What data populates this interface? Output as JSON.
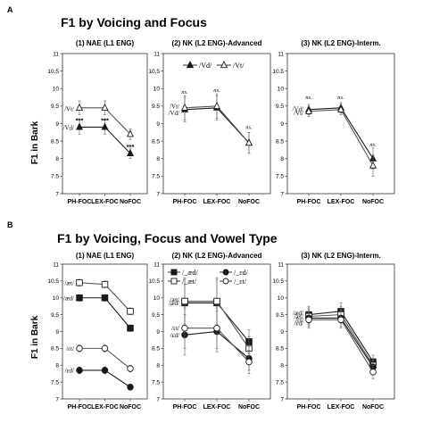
{
  "figure": {
    "panels": [
      {
        "letter": "A",
        "title": "F1 by Voicing and Focus",
        "ylabel": "F1 in Bark"
      },
      {
        "letter": "B",
        "title": "F1 by Voicing, Focus and Vowel Type",
        "ylabel": "F1 in Bark"
      }
    ]
  },
  "chart_data": [
    {
      "id": "A1",
      "type": "line",
      "title": "(1) NAE (L1 ENG)",
      "categories": [
        "PH-FOC",
        "LEX-FOC",
        "NoFOC"
      ],
      "ylim": [
        7,
        11
      ],
      "yticks": [
        7,
        7.5,
        8,
        8.5,
        9,
        9.5,
        10,
        10.5,
        11
      ],
      "series": [
        {
          "name": "/Vd/",
          "marker": "triangle",
          "fill": "filled",
          "values": [
            8.9,
            8.9,
            8.15
          ],
          "err": [
            0.2,
            0.2,
            0.15
          ]
        },
        {
          "name": "/Vt/",
          "marker": "triangle",
          "fill": "open",
          "values": [
            9.45,
            9.45,
            8.7
          ],
          "err": [
            0.2,
            0.2,
            0.15
          ]
        }
      ],
      "annotations": [
        {
          "text": "/Vt/",
          "style": "label",
          "cat": 0,
          "y": 9.42,
          "side": "left"
        },
        {
          "text": "/Vd/",
          "style": "label",
          "cat": 0,
          "y": 8.88,
          "side": "left"
        },
        {
          "text": "***",
          "style": "stars",
          "cat": 0,
          "y": 9.1
        },
        {
          "text": "***",
          "style": "stars",
          "cat": 1,
          "y": 9.1
        },
        {
          "text": "***",
          "style": "stars",
          "cat": 2,
          "y": 8.35
        }
      ]
    },
    {
      "id": "A2",
      "type": "line",
      "title": "(2) NK (L2 ENG)-Advanced",
      "categories": [
        "PH-FOC",
        "LEX-FOC",
        "NoFOC"
      ],
      "ylim": [
        7,
        11
      ],
      "yticks": [
        7,
        7.5,
        8,
        8.5,
        9,
        9.5,
        10,
        10.5,
        11
      ],
      "legend": {
        "placement": "top",
        "items": [
          {
            "marker": "triangle",
            "fill": "filled",
            "text": "/Vd/"
          },
          {
            "marker": "triangle",
            "fill": "open",
            "text": "/Vt/"
          }
        ]
      },
      "series": [
        {
          "name": "/Vd/",
          "marker": "triangle",
          "fill": "filled",
          "values": [
            9.4,
            9.45,
            8.45
          ],
          "err": [
            0.35,
            0.35,
            0.3
          ]
        },
        {
          "name": "/Vt/",
          "marker": "triangle",
          "fill": "open",
          "values": [
            9.45,
            9.5,
            8.45
          ],
          "err": [
            0.35,
            0.35,
            0.3
          ]
        }
      ],
      "annotations": [
        {
          "text": "/Vt/",
          "style": "label",
          "cat": 0,
          "y": 9.5,
          "side": "left"
        },
        {
          "text": "/Vd/",
          "style": "label",
          "cat": 0,
          "y": 9.3,
          "side": "left"
        },
        {
          "text": "ns.",
          "style": "ns",
          "cat": 0,
          "y": 9.85
        },
        {
          "text": "ns.",
          "style": "ns",
          "cat": 1,
          "y": 9.9
        },
        {
          "text": "ns.",
          "style": "ns",
          "cat": 2,
          "y": 8.85
        }
      ]
    },
    {
      "id": "A3",
      "type": "line",
      "title": "(3) NK (L2 ENG)-Interm.",
      "categories": [
        "PH-FOC",
        "LEX-FOC",
        "NoFOC"
      ],
      "ylim": [
        7,
        11
      ],
      "yticks": [
        7,
        7.5,
        8,
        8.5,
        9,
        9.5,
        10,
        10.5,
        11
      ],
      "series": [
        {
          "name": "/Vd/",
          "marker": "triangle",
          "fill": "filled",
          "values": [
            9.4,
            9.45,
            8.0
          ],
          "err": [
            0.15,
            0.15,
            0.3
          ]
        },
        {
          "name": "/Vt/",
          "marker": "triangle",
          "fill": "open",
          "values": [
            9.35,
            9.4,
            7.8
          ],
          "err": [
            0.15,
            0.15,
            0.3
          ]
        }
      ],
      "annotations": [
        {
          "text": "/Vd/",
          "style": "label",
          "cat": 0,
          "y": 9.42,
          "side": "left"
        },
        {
          "text": "/Vt/",
          "style": "label",
          "cat": 0,
          "y": 9.3,
          "side": "left"
        },
        {
          "text": "ns.",
          "style": "ns",
          "cat": 0,
          "y": 9.7
        },
        {
          "text": "ns.",
          "style": "ns",
          "cat": 1,
          "y": 9.7
        },
        {
          "text": "ns.",
          "style": "ns",
          "cat": 2,
          "y": 8.35
        }
      ]
    },
    {
      "id": "B1",
      "type": "line",
      "title": "(1) NAE (L1 ENG)",
      "categories": [
        "PH-FOC",
        "LEX-FOC",
        "NoFOC"
      ],
      "ylim": [
        7,
        11
      ],
      "yticks": [
        7,
        7.5,
        8,
        8.5,
        9,
        9.5,
        10,
        10.5,
        11
      ],
      "series": [
        {
          "name": "/æd/",
          "marker": "square",
          "fill": "filled",
          "values": [
            10.0,
            10.0,
            9.1
          ],
          "err": [
            0.1,
            0.1,
            0.1
          ]
        },
        {
          "name": "/æt/",
          "marker": "square",
          "fill": "open",
          "values": [
            10.45,
            10.4,
            9.6
          ],
          "err": [
            0.1,
            0.1,
            0.1
          ]
        },
        {
          "name": "/ɛd/",
          "marker": "circle",
          "fill": "filled",
          "values": [
            7.85,
            7.85,
            7.35
          ],
          "err": [
            0.1,
            0.1,
            0.08
          ]
        },
        {
          "name": "/ɛt/",
          "marker": "circle",
          "fill": "open",
          "values": [
            8.5,
            8.5,
            7.9
          ],
          "err": [
            0.1,
            0.1,
            0.1
          ]
        }
      ],
      "annotations": [
        {
          "text": "/æt/",
          "style": "label",
          "cat": 0,
          "y": 10.45,
          "side": "left"
        },
        {
          "text": "/æd/",
          "style": "label",
          "cat": 0,
          "y": 10.0,
          "side": "left"
        },
        {
          "text": "/ɛt/",
          "style": "label",
          "cat": 0,
          "y": 8.5,
          "side": "left"
        },
        {
          "text": "/ɛd/",
          "style": "label",
          "cat": 0,
          "y": 7.85,
          "side": "left"
        }
      ]
    },
    {
      "id": "B2",
      "type": "line",
      "title": "(2) NK (L2 ENG)-Advanced",
      "categories": [
        "PH-FOC",
        "LEX-FOC",
        "NoFOC"
      ],
      "ylim": [
        7,
        11
      ],
      "yticks": [
        7,
        7.5,
        8,
        8.5,
        9,
        9.5,
        10,
        10.5,
        11
      ],
      "legend": {
        "placement": "top",
        "items": [
          {
            "marker": "square",
            "fill": "filled",
            "text": "/_æd/"
          },
          {
            "marker": "circle",
            "fill": "filled",
            "text": "/_ɛd/"
          },
          {
            "marker": "square",
            "fill": "open",
            "text": "/_æt/"
          },
          {
            "marker": "circle",
            "fill": "open",
            "text": "/_ɛt/"
          }
        ]
      },
      "series": [
        {
          "name": "/æd/",
          "marker": "square",
          "fill": "filled",
          "values": [
            9.85,
            9.85,
            8.7
          ],
          "err": [
            0.7,
            0.7,
            0.35
          ]
        },
        {
          "name": "/æt/",
          "marker": "square",
          "fill": "open",
          "values": [
            9.9,
            9.9,
            8.5
          ],
          "err": [
            0.7,
            0.7,
            0.35
          ]
        },
        {
          "name": "/ɛd/",
          "marker": "circle",
          "fill": "filled",
          "values": [
            8.9,
            9.0,
            8.2
          ],
          "err": [
            0.6,
            0.6,
            0.35
          ]
        },
        {
          "name": "/ɛt/",
          "marker": "circle",
          "fill": "open",
          "values": [
            9.1,
            9.1,
            8.1
          ],
          "err": [
            0.6,
            0.6,
            0.35
          ]
        }
      ],
      "annotations": [
        {
          "text": "/æt/",
          "style": "label",
          "cat": 0,
          "y": 9.95,
          "side": "left"
        },
        {
          "text": "/æd/",
          "style": "label",
          "cat": 0,
          "y": 9.85,
          "side": "left"
        },
        {
          "text": "/ɛt/",
          "style": "label",
          "cat": 0,
          "y": 9.1,
          "side": "left"
        },
        {
          "text": "/ɛd/",
          "style": "label",
          "cat": 0,
          "y": 8.9,
          "side": "left"
        }
      ]
    },
    {
      "id": "B3",
      "type": "line",
      "title": "(3) NK (L2 ENG)-Interm.",
      "categories": [
        "PH-FOC",
        "LEX-FOC",
        "NoFOC"
      ],
      "ylim": [
        7,
        11
      ],
      "yticks": [
        7,
        7.5,
        8,
        8.5,
        9,
        9.5,
        10,
        10.5,
        11
      ],
      "series": [
        {
          "name": "/æd/",
          "marker": "square",
          "fill": "filled",
          "values": [
            9.5,
            9.6,
            8.1
          ],
          "err": [
            0.25,
            0.25,
            0.2
          ]
        },
        {
          "name": "/æt/",
          "marker": "square",
          "fill": "open",
          "values": [
            9.45,
            9.5,
            8.0
          ],
          "err": [
            0.25,
            0.25,
            0.2
          ]
        },
        {
          "name": "/ɛd/",
          "marker": "circle",
          "fill": "filled",
          "values": [
            9.4,
            9.4,
            7.95
          ],
          "err": [
            0.25,
            0.25,
            0.2
          ]
        },
        {
          "name": "/ɛt/",
          "marker": "circle",
          "fill": "open",
          "values": [
            9.35,
            9.35,
            7.8
          ],
          "err": [
            0.25,
            0.25,
            0.2
          ]
        }
      ],
      "annotations": [
        {
          "text": "/æd/",
          "style": "label",
          "cat": 0,
          "y": 9.55,
          "side": "left"
        },
        {
          "text": "/æt/",
          "style": "label",
          "cat": 0,
          "y": 9.45,
          "side": "left"
        },
        {
          "text": "/ɛt/",
          "style": "label",
          "cat": 0,
          "y": 9.35,
          "side": "left"
        },
        {
          "text": "/ɛd/",
          "style": "label",
          "cat": 0,
          "y": 9.25,
          "side": "left"
        }
      ]
    }
  ]
}
